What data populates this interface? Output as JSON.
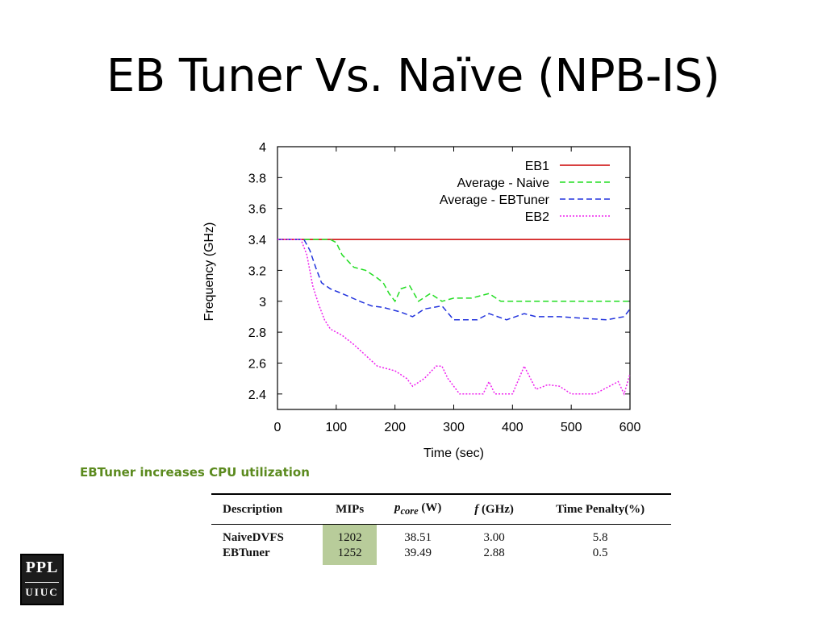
{
  "slide": {
    "title": "EB Tuner Vs. Naïve (NPB-IS)",
    "caption": "EBTuner increases CPU utilization"
  },
  "logo": {
    "top": "PPL",
    "bottom": "UIUC"
  },
  "chart_data": {
    "type": "line",
    "xlabel": "Time (sec)",
    "ylabel": "Frequency (GHz)",
    "xlim": [
      0,
      600
    ],
    "ylim": [
      2.3,
      4.0
    ],
    "xticks": [
      0,
      100,
      200,
      300,
      400,
      500,
      600
    ],
    "yticks": [
      2.4,
      2.6,
      2.8,
      3,
      3.2,
      3.4,
      3.6,
      3.8,
      4
    ],
    "grid": false,
    "legend_position": "top-right",
    "series": [
      {
        "name": "EB1",
        "color": "#cc0000",
        "style": "solid",
        "x": [
          0,
          600
        ],
        "y": [
          3.4,
          3.4
        ]
      },
      {
        "name": "Average - Naive",
        "color": "#22dd22",
        "style": "dashed",
        "x": [
          0,
          90,
          100,
          110,
          130,
          150,
          170,
          180,
          190,
          200,
          210,
          225,
          240,
          260,
          280,
          300,
          330,
          360,
          380,
          400,
          450,
          600
        ],
        "y": [
          3.4,
          3.4,
          3.38,
          3.3,
          3.22,
          3.2,
          3.15,
          3.12,
          3.05,
          3.0,
          3.08,
          3.1,
          3.0,
          3.05,
          3.0,
          3.02,
          3.02,
          3.05,
          3.0,
          3.0,
          3.0,
          3.0
        ]
      },
      {
        "name": "Average - EBTuner",
        "color": "#2233dd",
        "style": "dashed",
        "x": [
          0,
          45,
          55,
          65,
          75,
          90,
          110,
          140,
          160,
          180,
          210,
          230,
          250,
          280,
          300,
          340,
          360,
          390,
          420,
          440,
          480,
          560,
          590,
          600
        ],
        "y": [
          3.4,
          3.4,
          3.33,
          3.22,
          3.12,
          3.08,
          3.05,
          3.0,
          2.97,
          2.96,
          2.93,
          2.9,
          2.95,
          2.97,
          2.88,
          2.88,
          2.92,
          2.88,
          2.92,
          2.9,
          2.9,
          2.88,
          2.9,
          2.95
        ]
      },
      {
        "name": "EB2",
        "color": "#ee22ee",
        "style": "dotted",
        "x": [
          0,
          40,
          50,
          60,
          70,
          80,
          90,
          110,
          130,
          150,
          170,
          200,
          220,
          230,
          250,
          270,
          280,
          290,
          300,
          310,
          330,
          350,
          360,
          370,
          380,
          400,
          420,
          440,
          460,
          480,
          500,
          540,
          580,
          590,
          600
        ],
        "y": [
          3.4,
          3.4,
          3.3,
          3.1,
          2.98,
          2.88,
          2.82,
          2.78,
          2.72,
          2.65,
          2.58,
          2.55,
          2.5,
          2.45,
          2.5,
          2.58,
          2.58,
          2.5,
          2.45,
          2.4,
          2.4,
          2.4,
          2.48,
          2.4,
          2.4,
          2.4,
          2.58,
          2.43,
          2.46,
          2.45,
          2.4,
          2.4,
          2.48,
          2.4,
          2.53
        ]
      }
    ]
  },
  "table": {
    "headers": [
      {
        "text": "Description"
      },
      {
        "text": "MIPs"
      },
      {
        "sym": "p",
        "sub": "core",
        "unit": " (W)"
      },
      {
        "sym": "f",
        "unit": " (GHz)"
      },
      {
        "text": "Time Penalty(%)"
      }
    ],
    "rows": [
      {
        "description": "NaiveDVFS",
        "mips": "1202",
        "power": "38.51",
        "freq": "3.00",
        "penalty": "5.8"
      },
      {
        "description": "EBTuner",
        "mips": "1252",
        "power": "39.49",
        "freq": "2.88",
        "penalty": "0.5"
      }
    ]
  }
}
